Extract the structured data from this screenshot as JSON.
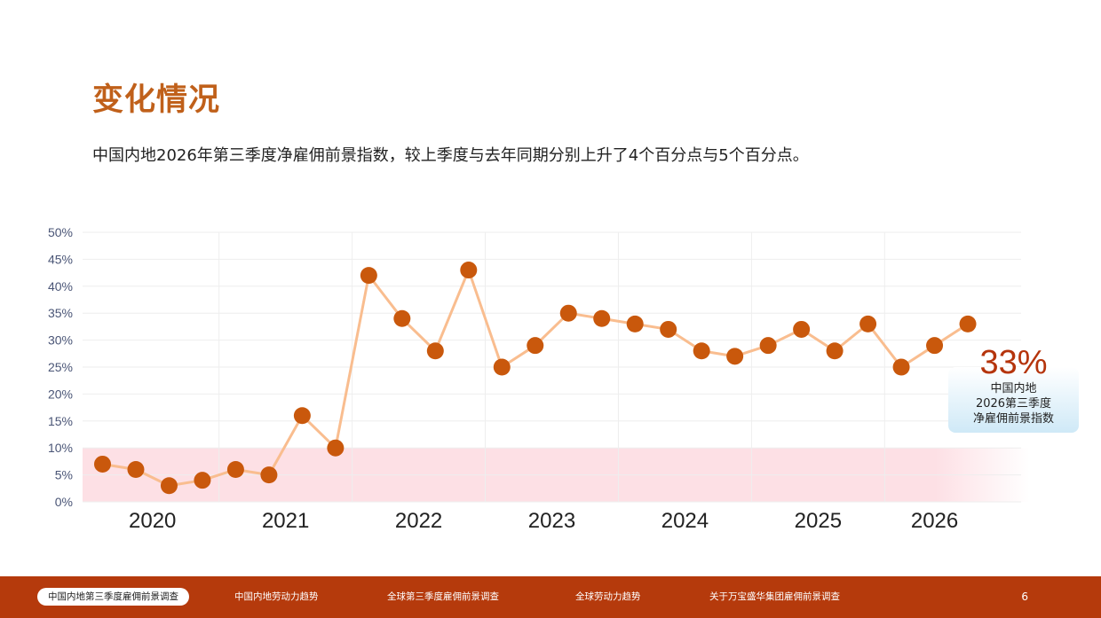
{
  "page": {
    "title": "变化情况",
    "subtitle": "中国内地2026年第三季度净雇佣前景指数，较上季度与去年同期分别上升了4个百分点与5个百分点。"
  },
  "callout": {
    "value": "33%",
    "line1": "中国内地",
    "line2": "2026第三季度",
    "line3": "净雇佣前景指数"
  },
  "footer": {
    "nav": [
      "中国内地第三季度雇佣前景调查",
      "中国内地劳动力趋势",
      "全球第三季度雇佣前景调查",
      "全球劳动力趋势",
      "关于万宝盛华集团雇佣前景调查"
    ],
    "active_index": 0,
    "page_number": "6"
  },
  "colors": {
    "title": "#c0601a",
    "line": "#f9bd8f",
    "marker": "#c9580c",
    "band": "#fde0e5",
    "footer": "#b53a0c",
    "callout_value": "#b5340c"
  },
  "chart_data": {
    "type": "line",
    "years": [
      "2020",
      "2021",
      "2022",
      "2023",
      "2024",
      "2025",
      "2026"
    ],
    "y_ticks": [
      "0%",
      "5%",
      "10%",
      "15%",
      "20%",
      "25%",
      "30%",
      "35%",
      "40%",
      "45%",
      "50%"
    ],
    "ylim": [
      0,
      50
    ],
    "highlight_band": [
      0,
      10
    ],
    "grid": true,
    "series": [
      {
        "values": [
          7,
          6,
          3,
          4,
          6,
          5,
          16,
          10,
          42,
          34,
          28,
          43,
          25,
          29,
          35,
          34,
          33,
          32,
          28,
          27,
          29,
          32,
          28,
          33,
          25,
          29,
          33
        ]
      }
    ]
  }
}
